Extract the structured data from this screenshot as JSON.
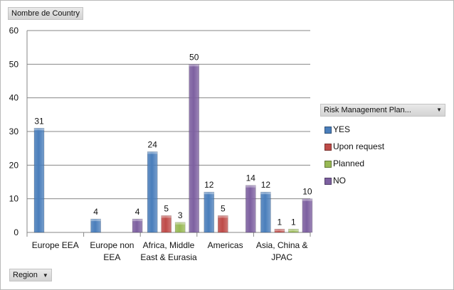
{
  "measure_field": "Nombre de Country",
  "region_field": "Region",
  "legend_title": "Risk Management Plan...",
  "colors": {
    "YES": "#4a7ebb",
    "Upon request": "#be4b48",
    "Planned": "#98b954",
    "NO": "#7d60a0"
  },
  "chart_data": {
    "type": "bar",
    "title": "",
    "xlabel": "",
    "ylabel": "",
    "ylim": [
      0,
      60
    ],
    "yticks": [
      0,
      10,
      20,
      30,
      40,
      50,
      60
    ],
    "categories": [
      [
        "Europe EEA"
      ],
      [
        "Europe non",
        "EEA"
      ],
      [
        "Africa, Middle",
        "East & Eurasia"
      ],
      [
        "Americas"
      ],
      [
        "Asia, China &",
        "JPAC"
      ]
    ],
    "series": [
      {
        "name": "YES",
        "values": [
          31,
          4,
          24,
          12,
          12
        ]
      },
      {
        "name": "Upon request",
        "values": [
          null,
          null,
          5,
          5,
          1
        ]
      },
      {
        "name": "Planned",
        "values": [
          null,
          null,
          3,
          null,
          1
        ]
      },
      {
        "name": "NO",
        "values": [
          null,
          4,
          50,
          14,
          10
        ]
      }
    ]
  }
}
